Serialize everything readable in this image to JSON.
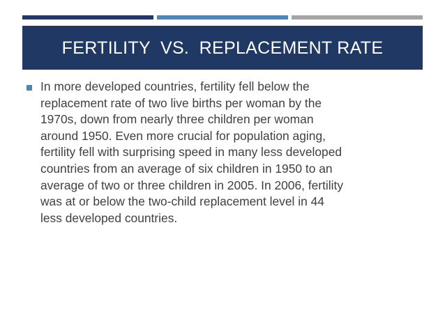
{
  "slide": {
    "title": "FERTILITY  VS.  REPLACEMENT RATE",
    "bullets": [
      {
        "text": " In more developed countries, fertility fell below the\nreplacement rate of two live births per woman by the\n1970s, down from nearly three children per woman\naround 1950. Even more crucial for population aging,\nfertility fell with surprising speed in many less developed\ncountries from an average of six children in 1950 to an\naverage of two or three children in 2005. In 2006, fertility\nwas at or below the two-child replacement level in 44\nless developed countries."
      }
    ]
  },
  "colors": {
    "title_band": "#1f3864",
    "stripe_dark": "#1f3864",
    "stripe_mid": "#4d87b5",
    "stripe_gray": "#a5a5a5",
    "bullet_marker": "#4d87b5",
    "body_text": "#404040",
    "title_text": "#ffffff"
  },
  "icons": {
    "bullet": "square-bullet-icon"
  }
}
